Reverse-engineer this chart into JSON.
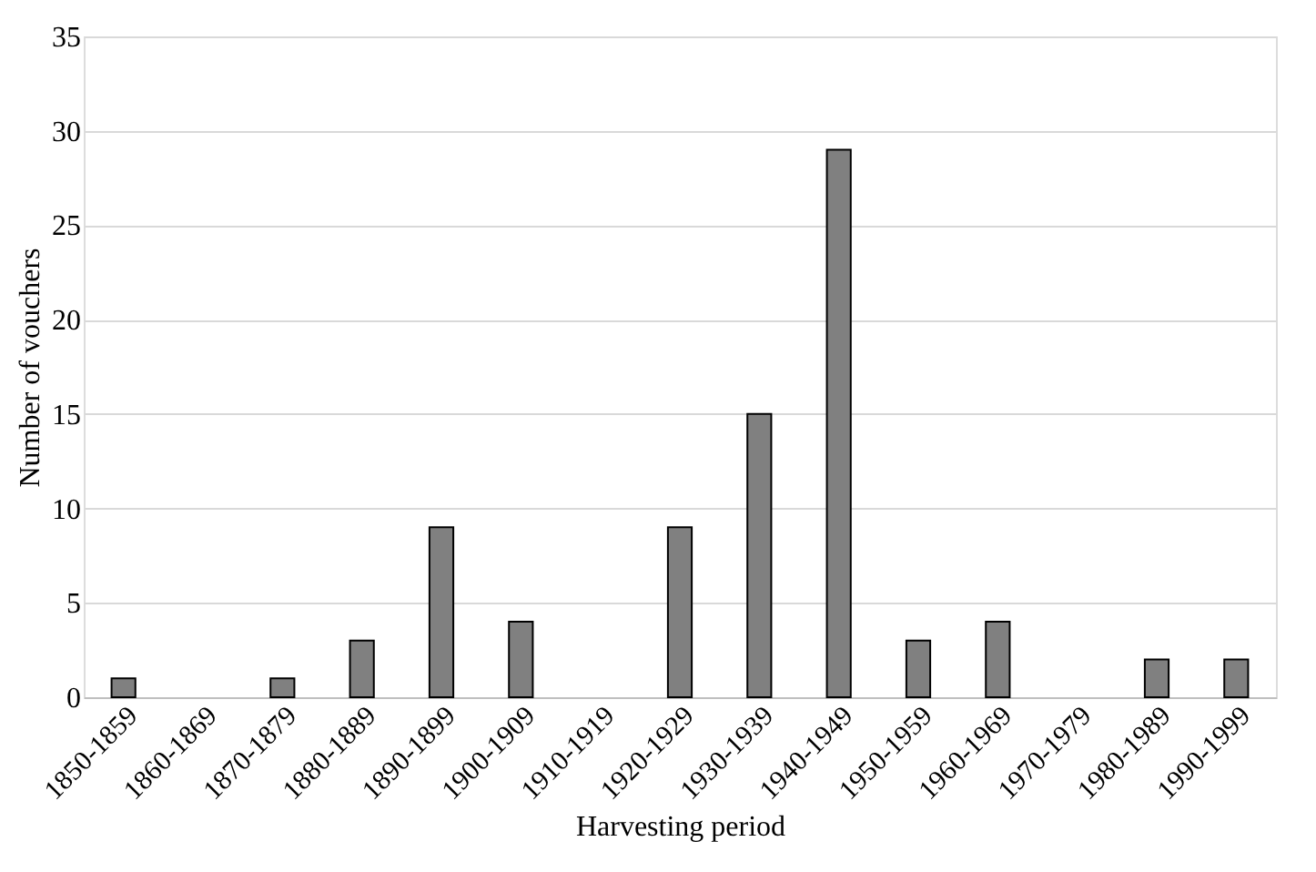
{
  "chart_data": {
    "type": "bar",
    "xlabel": "Harvesting period",
    "ylabel": "Number of vouchers",
    "categories": [
      "1850-1859",
      "1860-1869",
      "1870-1879",
      "1880-1889",
      "1890-1899",
      "1900-1909",
      "1910-1919",
      "1920-1929",
      "1930-1939",
      "1940-1949",
      "1950-1959",
      "1960-1969",
      "1970-1979",
      "1980-1989",
      "1990-1999"
    ],
    "values": [
      1,
      0,
      1,
      3,
      9,
      4,
      0,
      9,
      15,
      29,
      3,
      4,
      0,
      2,
      2
    ],
    "color": "#808080",
    "ylim": [
      0,
      35
    ],
    "yticks": [
      0,
      5,
      10,
      15,
      20,
      25,
      30,
      35
    ],
    "grid": "y"
  }
}
